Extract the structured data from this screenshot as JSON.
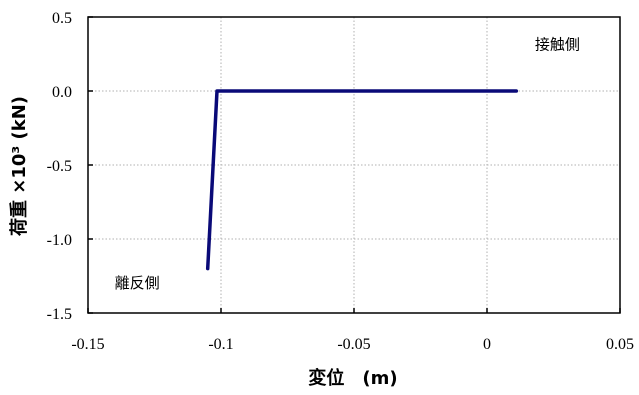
{
  "chart_data": {
    "type": "line",
    "xlabel": "変位　(m)",
    "ylabel": "荷重 ×10³ (kN)",
    "xlim": [
      -0.15,
      0.05
    ],
    "ylim": [
      -1.5,
      0.5
    ],
    "x_ticks": [
      "-0.15",
      "-0.1",
      "-0.05",
      "0",
      "0.05"
    ],
    "y_ticks": [
      "0.5",
      "0.0",
      "-0.5",
      "-1.0",
      "-1.5"
    ],
    "grid": true,
    "series": [
      {
        "color": "#0a0a78",
        "x": [
          -0.105,
          -0.1015,
          0.011
        ],
        "y": [
          -1.2,
          0.0,
          0.0
        ]
      }
    ],
    "annotations": [
      {
        "text": "接触側",
        "x": 0.018,
        "y": 0.28
      },
      {
        "text": "離反側",
        "x": -0.14,
        "y": -1.33
      }
    ]
  }
}
